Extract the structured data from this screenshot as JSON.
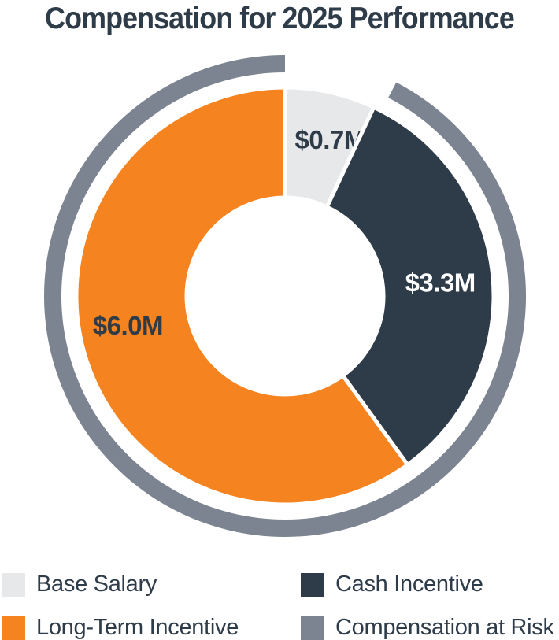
{
  "page": {
    "background": "#FFFFFF"
  },
  "chart_data": {
    "type": "donut",
    "title": "Compensation for 2025 Performance",
    "start_angle_deg": 0,
    "direction": "clockwise",
    "donut_hole": true,
    "legend_position": "bottom",
    "slices": [
      {
        "label": "Base Salary",
        "value": 0.7,
        "display": "$0.7M",
        "color": "#E6E8EA",
        "label_color": "#2E3B48"
      },
      {
        "label": "Cash Incentive",
        "value": 3.3,
        "display": "$3.3M",
        "color": "#2E3B48",
        "label_color": "#FFFFFF"
      },
      {
        "label": "Long-Term Incentive",
        "value": 6.0,
        "display": "$6.0M",
        "color": "#F5831F",
        "label_color": "#2E3B48"
      }
    ],
    "outer_ring": {
      "label": "Compensation at Risk",
      "color": "#7B8490",
      "covers": [
        "Cash Incentive",
        "Long-Term Incentive"
      ]
    }
  },
  "legend": {
    "items": [
      {
        "label": "Base Salary",
        "color": "#E6E8EA"
      },
      {
        "label": "Cash Incentive",
        "color": "#2E3B48"
      },
      {
        "label": "Long-Term Incentive",
        "color": "#F5831F"
      },
      {
        "label": "Compensation at Risk",
        "color": "#7B8490"
      }
    ]
  },
  "colors": {
    "title": "#2E3B48",
    "separator": "#FFFFFF"
  }
}
